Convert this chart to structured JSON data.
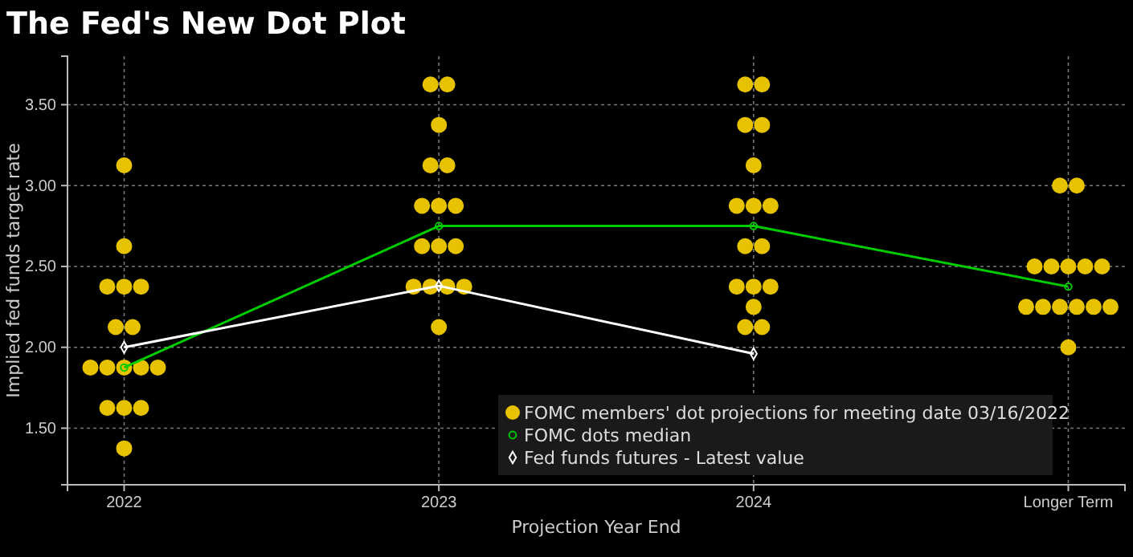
{
  "chart_data": {
    "type": "scatter",
    "title": "The Fed's New Dot Plot",
    "xlabel": "Projection Year End",
    "ylabel": "Implied fed funds target rate",
    "categories": [
      "2022",
      "2023",
      "2024",
      "Longer Term"
    ],
    "series": [
      {
        "name": "FOMC members' dot projections for meeting date 03/16/2022",
        "marker": "circle",
        "color": "#e6c200",
        "values": [
          3.125,
          3.625,
          3.625,
          3.0
        ]
      },
      {
        "color": "#e6c200",
        "values": [
          2.625,
          3.625,
          3.625,
          3.0
        ]
      },
      {
        "color": "#e6c200",
        "values": [
          2.375,
          3.375,
          3.375,
          2.5
        ]
      },
      {
        "color": "#e6c200",
        "values": [
          2.375,
          3.125,
          3.375,
          2.5
        ]
      },
      {
        "color": "#e6c200",
        "values": [
          2.375,
          3.125,
          3.125,
          2.5
        ]
      },
      {
        "color": "#e6c200",
        "values": [
          2.125,
          2.875,
          2.875,
          2.5
        ]
      },
      {
        "color": "#e6c200",
        "values": [
          2.125,
          2.875,
          2.875,
          2.5
        ]
      },
      {
        "color": "#e6c200",
        "values": [
          1.875,
          2.875,
          2.875,
          2.25
        ]
      },
      {
        "color": "#e6c200",
        "values": [
          1.875,
          2.625,
          2.625,
          2.25
        ]
      },
      {
        "color": "#e6c200",
        "values": [
          1.875,
          2.625,
          2.625,
          2.25
        ]
      },
      {
        "color": "#e6c200",
        "values": [
          1.875,
          2.625,
          2.375,
          2.25
        ]
      },
      {
        "color": "#e6c200",
        "values": [
          1.875,
          2.375,
          2.375,
          2.25
        ]
      },
      {
        "color": "#e6c200",
        "values": [
          1.625,
          2.375,
          2.375,
          2.25
        ]
      },
      {
        "color": "#e6c200",
        "values": [
          1.625,
          2.375,
          2.25,
          2.0
        ]
      },
      {
        "color": "#e6c200",
        "values": [
          1.625,
          2.375,
          2.125,
          null
        ]
      },
      {
        "color": "#e6c200",
        "values": [
          1.375,
          2.125,
          2.125,
          null
        ]
      },
      {
        "name": "FOMC dots median",
        "type": "line",
        "marker": "circle",
        "color": "#00cc00",
        "values": [
          1.875,
          2.75,
          2.75,
          2.375
        ]
      },
      {
        "name": "Fed funds futures - Latest value",
        "type": "line",
        "marker": "diamond",
        "color": "#ffffff",
        "values": [
          2.0,
          2.38,
          1.96,
          null
        ]
      }
    ],
    "ylim": [
      1.15,
      3.8
    ],
    "yticks": [
      {
        "value": 1.5,
        "label": "1.50"
      },
      {
        "value": 2.0,
        "label": "2.00"
      },
      {
        "value": 2.5,
        "label": "2.50"
      },
      {
        "value": 3.0,
        "label": "3.00"
      },
      {
        "value": 3.5,
        "label": "3.50"
      }
    ],
    "grid": true,
    "legend": "bottom right"
  }
}
